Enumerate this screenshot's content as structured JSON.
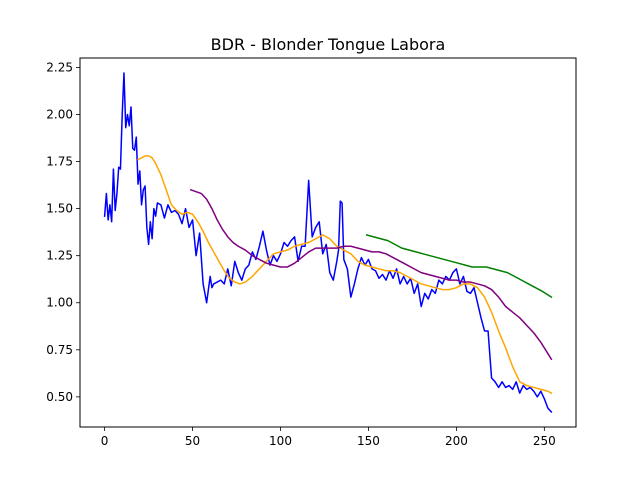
{
  "chart_data": {
    "type": "line",
    "title": "BDR - Blonder Tongue Labora",
    "xlabel": "",
    "ylabel": "",
    "xlim": [
      -14,
      268
    ],
    "ylim": [
      0.34,
      2.3
    ],
    "xticks": [
      0,
      50,
      100,
      150,
      200,
      250
    ],
    "xtick_labels": [
      "0",
      "50",
      "100",
      "150",
      "200",
      "250"
    ],
    "yticks": [
      0.5,
      0.75,
      1.0,
      1.25,
      1.5,
      1.75,
      2.0,
      2.25
    ],
    "ytick_labels": [
      "0.50",
      "0.75",
      "1.00",
      "1.25",
      "1.50",
      "1.75",
      "2.00",
      "2.25"
    ],
    "grid": false,
    "legend": "none",
    "series": [
      {
        "color": "#0000ff",
        "x": [
          0,
          1,
          2,
          3,
          4,
          5,
          6,
          7,
          8,
          9,
          10,
          11,
          12,
          13,
          14,
          15,
          16,
          17,
          18,
          19,
          20,
          21,
          22,
          23,
          24,
          25,
          26,
          27,
          28,
          29,
          30,
          32,
          34,
          36,
          38,
          40,
          42,
          44,
          46,
          48,
          50,
          52,
          54,
          56,
          58,
          60,
          61,
          62,
          64,
          66,
          68,
          70,
          72,
          74,
          76,
          78,
          80,
          82,
          84,
          86,
          88,
          90,
          92,
          94,
          96,
          98,
          100,
          102,
          104,
          106,
          108,
          110,
          112,
          114,
          116,
          118,
          120,
          122,
          124,
          126,
          128,
          130,
          132,
          133,
          134,
          135,
          136,
          138,
          140,
          142,
          144,
          146,
          148,
          150,
          152,
          154,
          156,
          158,
          160,
          162,
          164,
          166,
          168,
          170,
          172,
          174,
          176,
          178,
          180,
          182,
          184,
          186,
          188,
          190,
          192,
          194,
          196,
          198,
          200,
          202,
          204,
          206,
          208,
          210,
          212,
          214,
          216,
          218,
          220,
          222,
          224,
          226,
          228,
          230,
          232,
          234,
          236,
          238,
          240,
          242,
          244,
          246,
          248,
          250,
          252,
          254
        ],
        "y": [
          1.46,
          1.58,
          1.44,
          1.52,
          1.43,
          1.71,
          1.49,
          1.58,
          1.72,
          1.71,
          2.0,
          2.22,
          1.93,
          2.0,
          1.94,
          2.04,
          1.82,
          1.81,
          1.88,
          1.63,
          1.7,
          1.52,
          1.6,
          1.62,
          1.4,
          1.31,
          1.43,
          1.34,
          1.5,
          1.46,
          1.53,
          1.52,
          1.45,
          1.52,
          1.48,
          1.49,
          1.47,
          1.42,
          1.5,
          1.4,
          1.44,
          1.25,
          1.37,
          1.1,
          1.0,
          1.14,
          1.08,
          1.1,
          1.11,
          1.12,
          1.1,
          1.18,
          1.09,
          1.22,
          1.16,
          1.12,
          1.18,
          1.2,
          1.27,
          1.23,
          1.3,
          1.38,
          1.28,
          1.2,
          1.25,
          1.22,
          1.26,
          1.32,
          1.3,
          1.33,
          1.35,
          1.22,
          1.3,
          1.3,
          1.65,
          1.35,
          1.4,
          1.43,
          1.26,
          1.31,
          1.16,
          1.12,
          1.22,
          1.28,
          1.54,
          1.53,
          1.23,
          1.18,
          1.03,
          1.1,
          1.18,
          1.24,
          1.2,
          1.23,
          1.18,
          1.17,
          1.13,
          1.15,
          1.12,
          1.17,
          1.13,
          1.18,
          1.1,
          1.14,
          1.1,
          1.13,
          1.05,
          1.1,
          0.98,
          1.05,
          1.02,
          1.07,
          1.05,
          1.12,
          1.1,
          1.14,
          1.12,
          1.16,
          1.18,
          1.1,
          1.14,
          1.06,
          1.05,
          1.08,
          1.0,
          0.92,
          0.85,
          0.85,
          0.6,
          0.58,
          0.55,
          0.58,
          0.55,
          0.56,
          0.54,
          0.58,
          0.52,
          0.56,
          0.54,
          0.55,
          0.53,
          0.5,
          0.53,
          0.49,
          0.44,
          0.42
        ]
      },
      {
        "color": "#ffa500",
        "x": [
          19,
          21,
          23,
          25,
          27,
          29,
          32,
          35,
          38,
          41,
          44,
          47,
          50,
          53,
          56,
          59,
          62,
          65,
          68,
          71,
          74,
          77,
          80,
          84,
          88,
          92,
          96,
          100,
          104,
          108,
          112,
          116,
          120,
          124,
          128,
          132,
          136,
          140,
          144,
          148,
          152,
          156,
          160,
          164,
          168,
          172,
          176,
          180,
          184,
          188,
          192,
          196,
          200,
          204,
          208,
          212,
          216,
          220,
          224,
          228,
          232,
          236,
          240,
          244,
          248,
          252,
          254
        ],
        "y": [
          1.76,
          1.77,
          1.78,
          1.78,
          1.77,
          1.74,
          1.68,
          1.6,
          1.52,
          1.49,
          1.47,
          1.48,
          1.47,
          1.43,
          1.38,
          1.32,
          1.27,
          1.22,
          1.17,
          1.13,
          1.11,
          1.1,
          1.11,
          1.14,
          1.18,
          1.22,
          1.26,
          1.27,
          1.28,
          1.3,
          1.31,
          1.32,
          1.34,
          1.36,
          1.34,
          1.3,
          1.28,
          1.26,
          1.22,
          1.2,
          1.19,
          1.18,
          1.17,
          1.17,
          1.16,
          1.14,
          1.12,
          1.1,
          1.09,
          1.08,
          1.07,
          1.07,
          1.08,
          1.1,
          1.1,
          1.08,
          1.03,
          0.95,
          0.85,
          0.76,
          0.66,
          0.58,
          0.56,
          0.55,
          0.54,
          0.53,
          0.52
        ]
      },
      {
        "color": "#800080",
        "x": [
          49,
          52,
          55,
          58,
          61,
          64,
          67,
          70,
          73,
          76,
          80,
          84,
          88,
          92,
          96,
          100,
          104,
          108,
          112,
          116,
          120,
          124,
          128,
          132,
          136,
          140,
          144,
          148,
          152,
          156,
          160,
          164,
          168,
          172,
          176,
          180,
          184,
          188,
          192,
          196,
          200,
          204,
          208,
          212,
          216,
          220,
          224,
          228,
          232,
          236,
          240,
          244,
          248,
          252,
          254
        ],
        "y": [
          1.6,
          1.59,
          1.58,
          1.55,
          1.5,
          1.44,
          1.39,
          1.35,
          1.32,
          1.3,
          1.28,
          1.25,
          1.23,
          1.21,
          1.2,
          1.19,
          1.19,
          1.21,
          1.24,
          1.27,
          1.29,
          1.29,
          1.29,
          1.29,
          1.3,
          1.3,
          1.29,
          1.28,
          1.27,
          1.27,
          1.26,
          1.24,
          1.22,
          1.2,
          1.18,
          1.16,
          1.15,
          1.14,
          1.13,
          1.12,
          1.12,
          1.11,
          1.11,
          1.1,
          1.09,
          1.07,
          1.03,
          0.98,
          0.95,
          0.92,
          0.88,
          0.84,
          0.79,
          0.73,
          0.7
        ]
      },
      {
        "color": "#008000",
        "x": [
          149,
          153,
          157,
          161,
          165,
          169,
          173,
          177,
          181,
          185,
          189,
          193,
          197,
          201,
          205,
          209,
          213,
          217,
          221,
          225,
          229,
          233,
          237,
          241,
          245,
          249,
          254
        ],
        "y": [
          1.36,
          1.35,
          1.34,
          1.33,
          1.31,
          1.29,
          1.28,
          1.27,
          1.26,
          1.25,
          1.24,
          1.23,
          1.22,
          1.21,
          1.2,
          1.19,
          1.19,
          1.19,
          1.18,
          1.17,
          1.16,
          1.14,
          1.12,
          1.1,
          1.08,
          1.06,
          1.03
        ]
      }
    ]
  }
}
